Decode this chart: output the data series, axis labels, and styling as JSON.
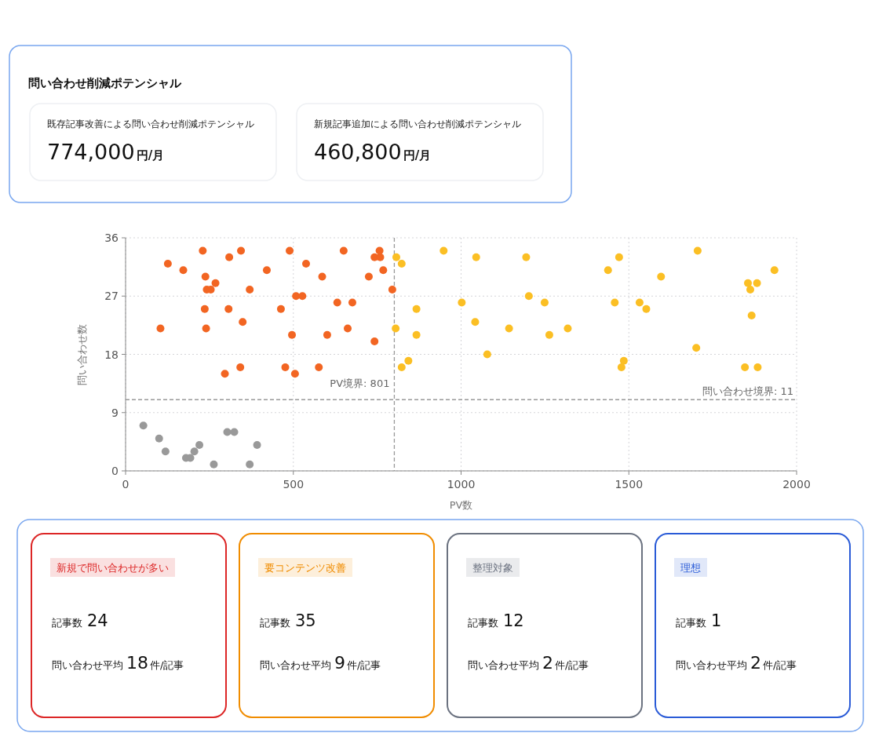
{
  "chart_data": [
    {
      "type": "other",
      "title": "問い合わせ削減ポテンシャル",
      "annotations": [
        "既存記事改善による問い合わせ削減ポテンシャル",
        "774,000",
        "円/月",
        "新規記事追加による問い合わせ削減ポテンシャル",
        "460,800",
        "円/月"
      ]
    },
    {
      "type": "scatter",
      "xlabel": "PV数",
      "ylabel": "問い合わせ数",
      "xlim": [
        0,
        2000
      ],
      "ylim": [
        0,
        36
      ],
      "xticks": [
        0,
        500,
        1000,
        1500,
        2000
      ],
      "yticks": [
        0,
        9,
        18,
        27,
        36
      ],
      "grid": true,
      "marker": "circle",
      "ref_lines": [
        {
          "axis": "x",
          "value": 801,
          "label": "PV境界: 801",
          "line_style": "dashed"
        },
        {
          "axis": "y",
          "value": 11,
          "label": "問い合わせ境界: 11",
          "line_style": "dashed"
        }
      ],
      "series": [
        {
          "color": "#f26522",
          "x": [
            230,
            126,
            172,
            238,
            268,
            242,
            254,
            236,
            240,
            104,
            309,
            344,
            370,
            307,
            349,
            296,
            342,
            421,
            463,
            476,
            489,
            496,
            505,
            508,
            527,
            538,
            586,
            576,
            601,
            631,
            676,
            650,
            662,
            725,
            742,
            742,
            759,
            757,
            768,
            795
          ],
          "values": [
            34,
            32,
            31,
            30,
            29,
            28,
            28,
            25,
            22,
            22,
            33,
            34,
            28,
            25,
            23,
            15,
            16,
            31,
            25,
            16,
            34,
            21,
            15,
            27,
            27,
            32,
            30,
            16,
            21,
            26,
            26,
            34,
            22,
            30,
            20,
            33,
            33,
            34,
            31,
            28
          ]
        },
        {
          "color": "#fbbf24",
          "x": [
            807,
            823,
            948,
            867,
            805,
            867,
            843,
            823,
            1045,
            1194,
            1002,
            1042,
            1078,
            1143,
            1202,
            1249,
            1263,
            1318,
            1438,
            1471,
            1458,
            1485,
            1478,
            1705,
            1596,
            1532,
            1552,
            1701,
            1934,
            1855,
            1882,
            1862,
            1866,
            1846,
            1884
          ],
          "values": [
            33,
            32,
            34,
            25,
            22,
            21,
            17,
            16,
            33,
            33,
            26,
            23,
            18,
            22,
            27,
            26,
            21,
            22,
            31,
            33,
            26,
            17,
            16,
            34,
            30,
            26,
            25,
            19,
            31,
            29,
            29,
            28,
            24,
            16,
            16
          ]
        },
        {
          "color": "#999999",
          "x": [
            53,
            100,
            119,
            180,
            193,
            205,
            220,
            263,
            303,
            324,
            370,
            392
          ],
          "values": [
            7,
            5,
            3,
            2,
            2,
            3,
            4,
            1,
            6,
            6,
            1,
            4
          ]
        }
      ]
    },
    {
      "type": "other",
      "colors": [
        "#dc2626",
        "#f08c00",
        "#6b7280",
        "#2a5bd7"
      ],
      "annotations": [
        "新規で問い合わせが多い",
        "記事数",
        "24",
        "問い合わせ平均",
        "18",
        "件/記事",
        "要コンテンツ改善",
        "記事数",
        "35",
        "問い合わせ平均",
        "9",
        "件/記事",
        "整理対象",
        "記事数",
        "12",
        "問い合わせ平均",
        "2",
        "件/記事",
        "理想",
        "記事数",
        "1",
        "問い合わせ平均",
        "2",
        "件/記事"
      ]
    }
  ]
}
